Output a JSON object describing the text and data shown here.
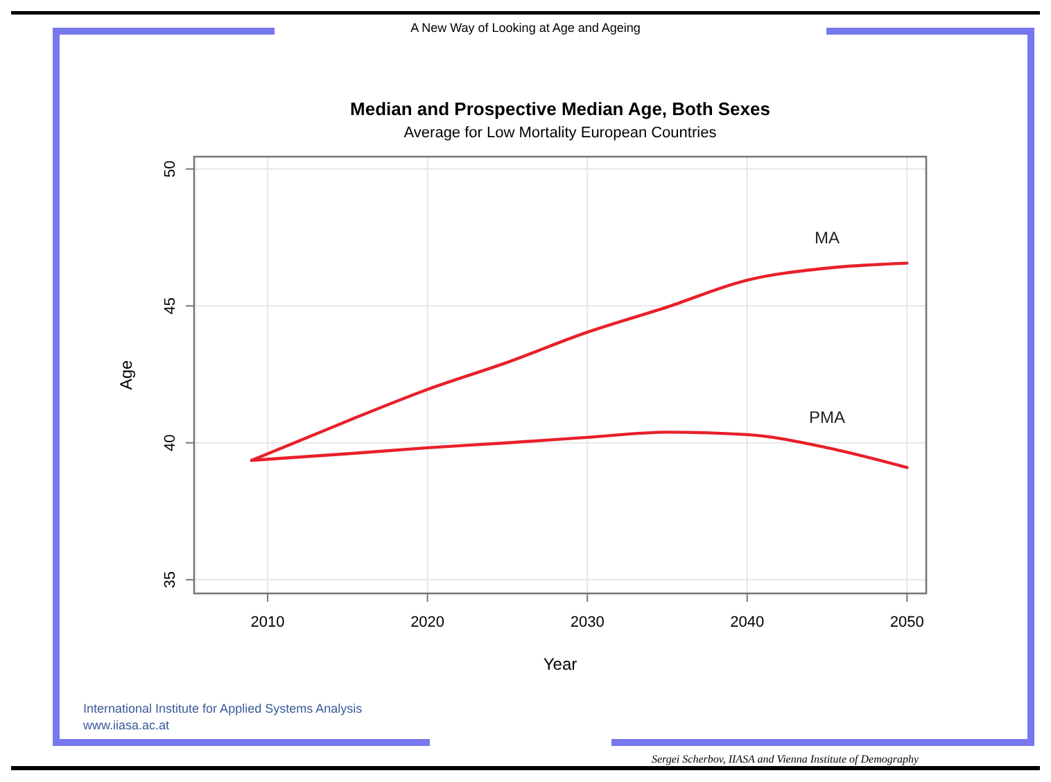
{
  "chart_data": {
    "type": "line",
    "title": "Median and Prospective Median Age, Both Sexes",
    "subtitle": "Average for Low Mortality European Countries",
    "xlabel": "Year",
    "ylabel": "Age",
    "x": [
      2009,
      2015,
      2020,
      2025,
      2030,
      2035,
      2040,
      2045,
      2050
    ],
    "series": [
      {
        "name": "MA",
        "color": "#e8202a",
        "values": [
          39.36,
          40.8,
          41.95,
          42.94,
          44.04,
          44.96,
          45.94,
          46.38,
          46.56
        ]
      },
      {
        "name": "PMA",
        "color": "#e8202a",
        "values": [
          39.36,
          39.6,
          39.82,
          40.0,
          40.2,
          40.39,
          40.3,
          39.82,
          39.1
        ]
      }
    ],
    "xlim": [
      2005.4,
      2051.2
    ],
    "ylim": [
      34.5,
      50.45
    ],
    "xticks": [
      2010,
      2020,
      2030,
      2040,
      2050
    ],
    "yticks": [
      35,
      40,
      45,
      50
    ],
    "grid": true,
    "line_style": "solid",
    "marker": "none",
    "annotations": [
      "A New Way of Looking at Age and Ageing",
      "International Institute for Applied Systems Analysis",
      "www.iiasa.ac.at",
      "Sergei Scherbov, IIASA and Vienna Institute of Demography"
    ]
  }
}
